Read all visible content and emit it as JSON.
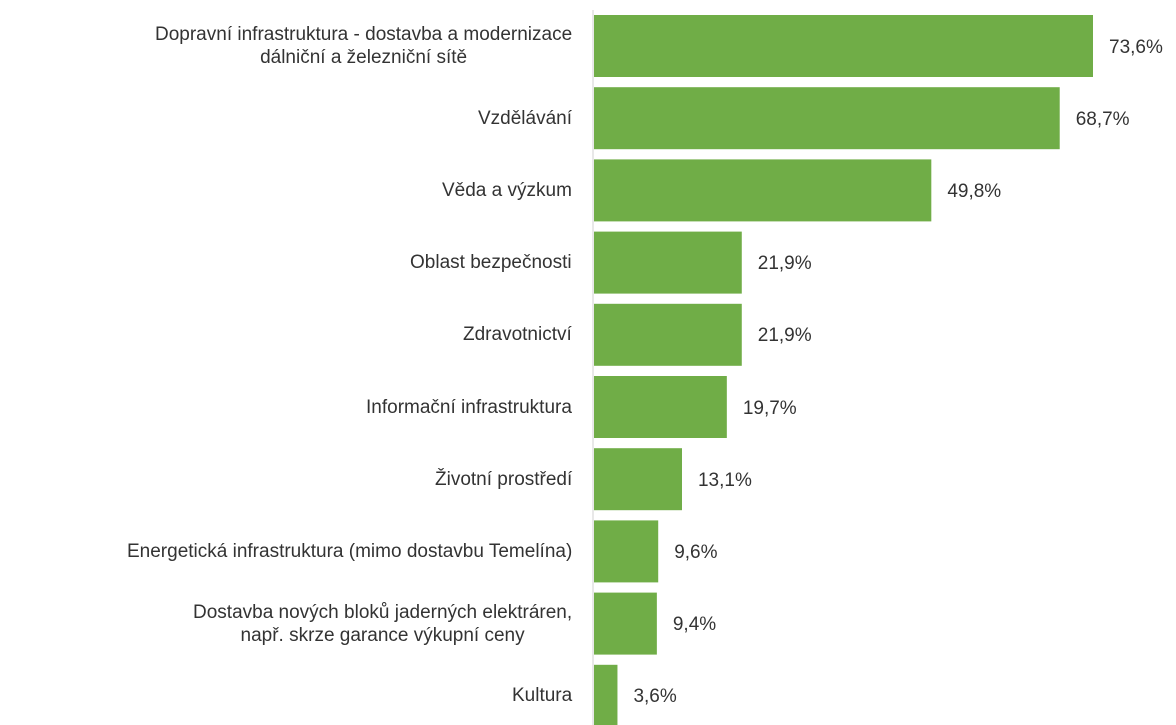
{
  "chart_data": {
    "type": "barh",
    "categories": [
      "Dopravní infrastruktura  - dostavba a modernizace\ndálniční a železniční sítě",
      "Vzdělávání",
      "Věda a výzkum",
      "Oblast bezpečnosti",
      "Zdravotnictví",
      "Informační infrastruktura",
      "Životní prostředí",
      "Energetická infrastruktura (mimo dostavbu Temelína)",
      "Dostavba nových bloků jaderných elektráren,\nnapř. skrze garance výkupní ceny",
      "Kultura"
    ],
    "values": [
      73.6,
      68.7,
      49.8,
      21.9,
      21.9,
      19.7,
      13.1,
      9.6,
      9.4,
      3.6
    ],
    "value_labels": [
      "73,6%",
      "68,7%",
      "49,8%",
      "21,9%",
      "21,9%",
      "19,7%",
      "13,1%",
      "9,6%",
      "9,4%",
      "3,6%"
    ],
    "color": "#70ad47"
  }
}
